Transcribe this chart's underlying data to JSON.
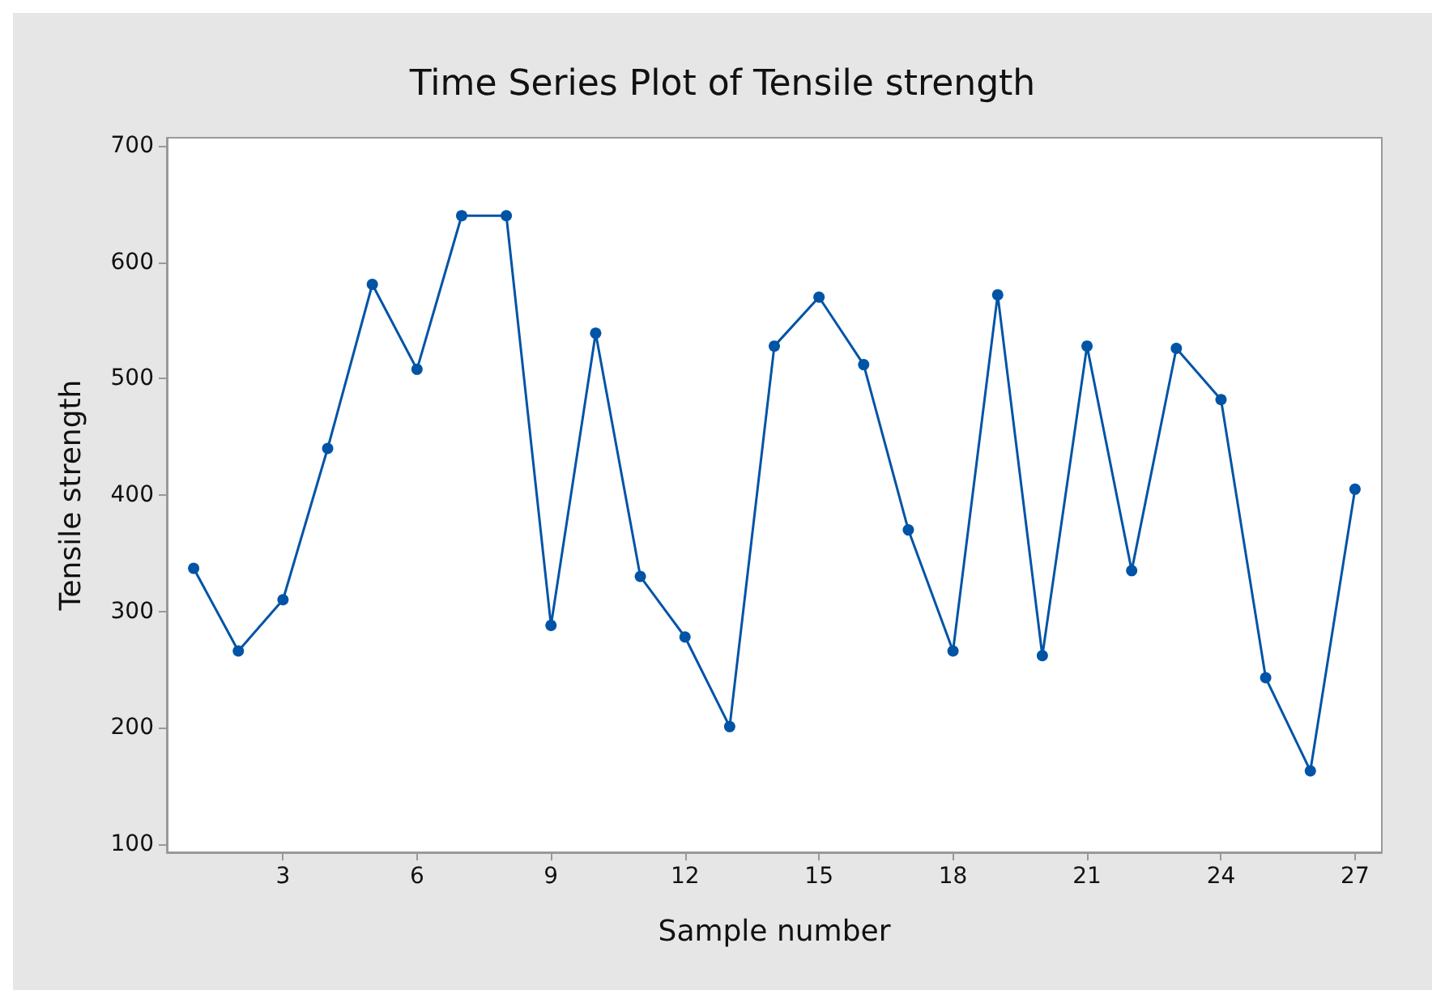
{
  "chart_data": {
    "type": "line",
    "title": "Time Series Plot of Tensile strength",
    "xlabel": "Sample number",
    "ylabel": "Tensile strength",
    "x": [
      1,
      2,
      3,
      4,
      5,
      6,
      7,
      8,
      9,
      10,
      11,
      12,
      13,
      14,
      15,
      16,
      17,
      18,
      19,
      20,
      21,
      22,
      23,
      24,
      25,
      26,
      27
    ],
    "series": [
      {
        "color": "#0054a6",
        "values": [
          337,
          266,
          310,
          440,
          581,
          508,
          640,
          640,
          288,
          539,
          330,
          278,
          201,
          528,
          570,
          512,
          370,
          266,
          572,
          262,
          528,
          335,
          526,
          482,
          243,
          163,
          405
        ]
      }
    ],
    "xlim": [
      0.4,
      27.6
    ],
    "xticks": [
      3,
      6,
      9,
      12,
      15,
      18,
      21,
      24,
      27
    ],
    "ylim": [
      93,
      707
    ],
    "yticks": [
      100,
      200,
      300,
      400,
      500,
      600,
      700
    ],
    "grid": false,
    "marker": "circle",
    "line_style": "solid"
  }
}
